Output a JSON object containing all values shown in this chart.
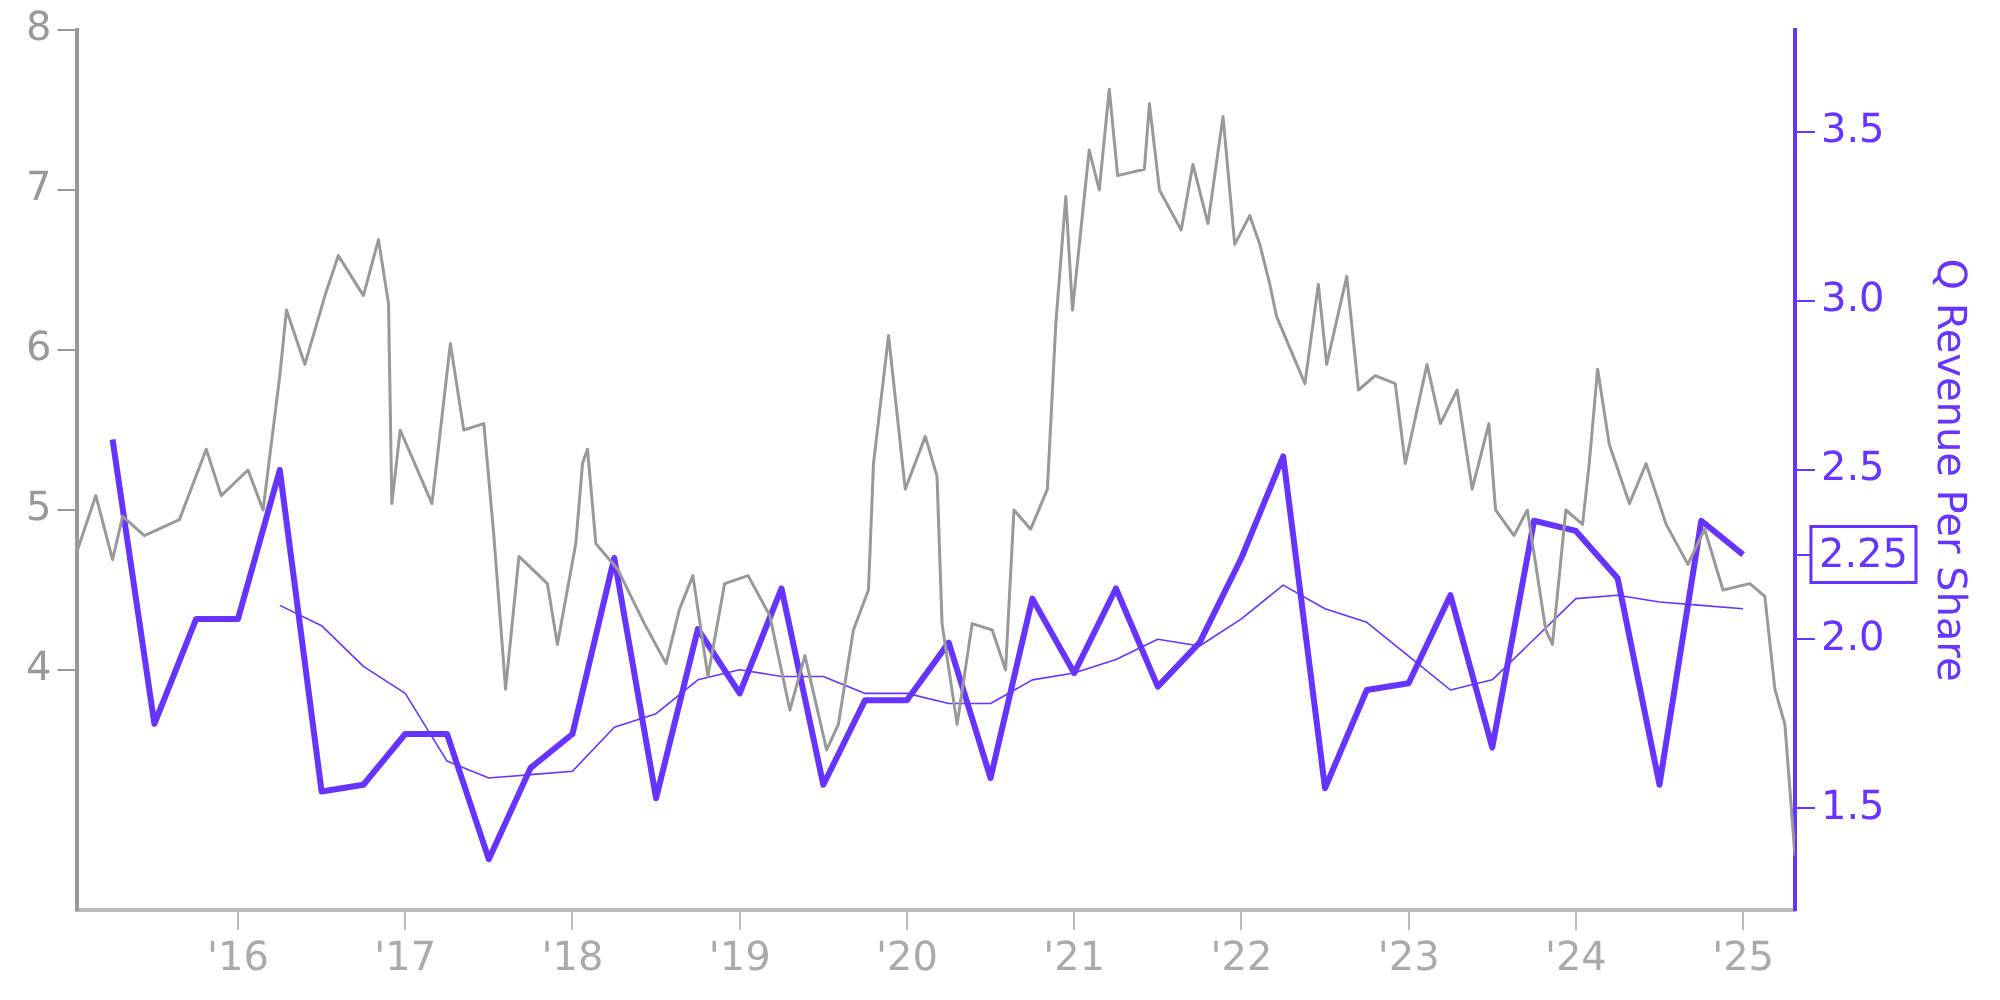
{
  "chart_data": {
    "type": "line",
    "y2label": "Q Revenue Per Share",
    "xlim": [
      2015.04,
      2025.31
    ],
    "xticks": [
      {
        "value": 2016,
        "label": "'16"
      },
      {
        "value": 2017,
        "label": "'17"
      },
      {
        "value": 2018,
        "label": "'18"
      },
      {
        "value": 2019,
        "label": "'19"
      },
      {
        "value": 2020,
        "label": "'20"
      },
      {
        "value": 2021,
        "label": "'21"
      },
      {
        "value": 2022,
        "label": "'22"
      },
      {
        "value": 2023,
        "label": "'23"
      },
      {
        "value": 2024,
        "label": "'24"
      },
      {
        "value": 2025,
        "label": "'25"
      }
    ],
    "ylim": [
      2.5,
      8
    ],
    "yticks": [
      4,
      5,
      6,
      7,
      8
    ],
    "y2lim": [
      1.2,
      3.8
    ],
    "y2ticks": [
      {
        "value": 1.5,
        "label": "1.5"
      },
      {
        "value": 2.0,
        "label": "2.0"
      },
      {
        "value": 2.5,
        "label": "2.5"
      },
      {
        "value": 3.0,
        "label": "3.0"
      },
      {
        "value": 3.5,
        "label": "3.5"
      },
      {
        "value": 2.25,
        "label": "2.25"
      }
    ],
    "grid": false,
    "legend": false,
    "series": [
      {
        "color": "#999999",
        "x": [
          2015.04,
          2015.15,
          2015.25,
          2015.31,
          2015.44,
          2015.65,
          2015.81,
          2015.9,
          2016.06,
          2016.15,
          2016.25,
          2016.29,
          2016.4,
          2016.52,
          2016.6,
          2016.75,
          2016.84,
          2016.9,
          2016.92,
          2016.97,
          2017.16,
          2017.27,
          2017.35,
          2017.47,
          2017.53,
          2017.6,
          2017.68,
          2017.85,
          2017.91,
          2018.02,
          2018.06,
          2018.09,
          2018.14,
          2018.27,
          2018.43,
          2018.56,
          2018.64,
          2018.72,
          2018.81,
          2018.91,
          2019.05,
          2019.18,
          2019.3,
          2019.39,
          2019.52,
          2019.59,
          2019.68,
          2019.77,
          2019.8,
          2019.89,
          2019.99,
          2020.11,
          2020.18,
          2020.21,
          2020.3,
          2020.39,
          2020.51,
          2020.59,
          2020.64,
          2020.74,
          2020.84,
          2020.89,
          2020.95,
          2020.99,
          2021.09,
          2021.15,
          2021.21,
          2021.26,
          2021.42,
          2021.45,
          2021.51,
          2021.64,
          2021.71,
          2021.8,
          2021.89,
          2021.96,
          2022.05,
          2022.11,
          2022.17,
          2022.21,
          2022.38,
          2022.46,
          2022.51,
          2022.63,
          2022.7,
          2022.8,
          2022.92,
          2022.98,
          2023.11,
          2023.19,
          2023.29,
          2023.38,
          2023.48,
          2023.52,
          2023.63,
          2023.71,
          2023.82,
          2023.86,
          2023.94,
          2024.04,
          2024.08,
          2024.13,
          2024.2,
          2024.32,
          2024.42,
          2024.54,
          2024.67,
          2024.77,
          2024.88,
          2025.04,
          2025.13,
          2025.19,
          2025.25,
          2025.31
        ],
        "values": [
          4.75,
          5.09,
          4.69,
          4.96,
          4.84,
          4.94,
          5.38,
          5.09,
          5.25,
          5.0,
          5.84,
          6.25,
          5.91,
          6.34,
          6.59,
          6.34,
          6.69,
          6.29,
          5.04,
          5.5,
          5.04,
          6.04,
          5.5,
          5.54,
          4.84,
          3.88,
          4.71,
          4.54,
          4.16,
          4.79,
          5.29,
          5.38,
          4.79,
          4.63,
          4.29,
          4.04,
          4.38,
          4.59,
          3.96,
          4.54,
          4.59,
          4.34,
          3.75,
          4.09,
          3.5,
          3.66,
          4.25,
          4.5,
          5.29,
          6.09,
          5.13,
          5.46,
          5.21,
          4.29,
          3.66,
          4.29,
          4.25,
          4.0,
          5.0,
          4.88,
          5.13,
          6.16,
          6.96,
          6.25,
          7.25,
          7.0,
          7.63,
          7.09,
          7.13,
          7.54,
          7.0,
          6.75,
          7.16,
          6.79,
          7.46,
          6.66,
          6.84,
          6.66,
          6.41,
          6.21,
          5.79,
          6.41,
          5.91,
          6.46,
          5.75,
          5.84,
          5.79,
          5.29,
          5.91,
          5.54,
          5.75,
          5.13,
          5.54,
          5.0,
          4.84,
          5.0,
          4.25,
          4.16,
          5.0,
          4.91,
          5.29,
          5.88,
          5.41,
          5.04,
          5.29,
          4.91,
          4.66,
          4.88,
          4.5,
          4.54,
          4.46,
          3.88,
          3.66,
          2.84
        ]
      },
      {
        "color": "#6633ff",
        "axis": "y2",
        "x": [
          2015.25,
          2015.5,
          2015.75,
          2016.0,
          2016.25,
          2016.5,
          2016.75,
          2017.0,
          2017.25,
          2017.5,
          2017.75,
          2018.0,
          2018.25,
          2018.5,
          2018.75,
          2019.0,
          2019.25,
          2019.5,
          2019.75,
          2020.0,
          2020.25,
          2020.5,
          2020.75,
          2021.0,
          2021.25,
          2021.5,
          2021.75,
          2022.0,
          2022.25,
          2022.5,
          2022.75,
          2023.0,
          2023.25,
          2023.5,
          2023.75,
          2024.0,
          2024.25,
          2024.5,
          2024.75,
          2025.0
        ],
        "values": [
          2.59,
          1.75,
          2.06,
          2.06,
          2.5,
          1.55,
          1.57,
          1.72,
          1.72,
          1.35,
          1.62,
          1.72,
          2.24,
          1.53,
          2.03,
          1.84,
          2.15,
          1.57,
          1.82,
          1.82,
          1.99,
          1.59,
          2.12,
          1.9,
          2.15,
          1.86,
          1.99,
          2.24,
          2.54,
          1.56,
          1.85,
          1.87,
          2.13,
          1.68,
          2.35,
          2.32,
          2.18,
          1.57,
          2.35,
          2.25
        ]
      },
      {
        "color": "#6633ff",
        "axis": "y2",
        "x": [
          2016.25,
          2016.5,
          2016.75,
          2017.0,
          2017.25,
          2017.5,
          2017.75,
          2018.0,
          2018.25,
          2018.5,
          2018.75,
          2019.0,
          2019.25,
          2019.5,
          2019.75,
          2020.0,
          2020.25,
          2020.5,
          2020.75,
          2021.0,
          2021.25,
          2021.5,
          2021.75,
          2022.0,
          2022.25,
          2022.5,
          2022.75,
          2023.0,
          2023.25,
          2023.5,
          2023.75,
          2024.0,
          2024.25,
          2024.5,
          2024.75,
          2025.0
        ],
        "values": [
          2.1,
          2.04,
          1.92,
          1.84,
          1.64,
          1.59,
          1.6,
          1.61,
          1.74,
          1.78,
          1.88,
          1.91,
          1.89,
          1.89,
          1.84,
          1.84,
          1.81,
          1.81,
          1.88,
          1.9,
          1.94,
          2.0,
          1.98,
          2.06,
          2.16,
          2.09,
          2.05,
          1.95,
          1.85,
          1.88,
          2.0,
          2.12,
          2.13,
          2.11,
          2.1,
          2.09
        ]
      }
    ]
  }
}
